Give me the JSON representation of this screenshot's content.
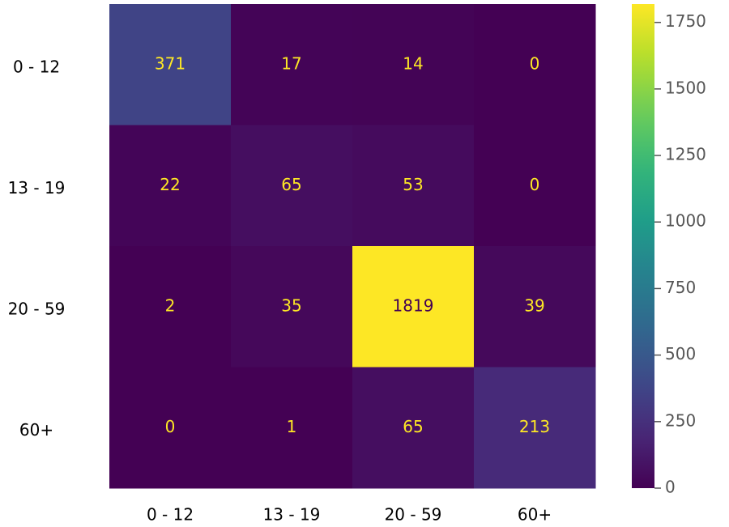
{
  "chart_data": {
    "type": "heatmap",
    "categories": [
      "0 - 12",
      "13 - 19",
      "20 - 59",
      "60+"
    ],
    "y_categories": [
      "0 - 12",
      "13 - 19",
      "20 - 59",
      "60+"
    ],
    "values": [
      [
        371,
        17,
        14,
        0
      ],
      [
        22,
        65,
        53,
        0
      ],
      [
        2,
        35,
        1819,
        39
      ],
      [
        0,
        1,
        65,
        213
      ]
    ],
    "colormap": "viridis",
    "clim": [
      0,
      1819
    ],
    "cticks": [
      0,
      250,
      500,
      750,
      1000,
      1250,
      1500,
      1750
    ]
  }
}
